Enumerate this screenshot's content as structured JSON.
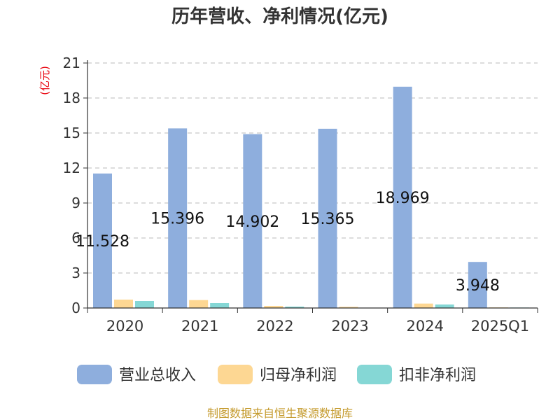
{
  "title": "历年营收、净利情况(亿元)",
  "source": "制图数据来自恒生聚源数据库",
  "chart_data": {
    "type": "bar",
    "title": "历年营收、净利情况(亿元)",
    "ylabel": "(亿元)",
    "xlabel": "",
    "ylim": [
      0,
      21
    ],
    "yticks": [
      0,
      3,
      6,
      9,
      12,
      15,
      18,
      21
    ],
    "grid": "horizontal-dashed",
    "legend_position": "bottom",
    "categories": [
      "2020",
      "2021",
      "2022",
      "2023",
      "2024",
      "2025Q1"
    ],
    "series": [
      {
        "name": "营业总收入",
        "color": "#8eaedd",
        "values": [
          11.528,
          15.396,
          14.902,
          15.365,
          18.969,
          3.948
        ],
        "labels": [
          "11.528",
          "15.396",
          "14.902",
          "15.365",
          "18.969",
          "3.948"
        ]
      },
      {
        "name": "归母净利润",
        "color": "#fdd793",
        "values": [
          0.72,
          0.68,
          0.18,
          0.1,
          0.38,
          0.05
        ]
      },
      {
        "name": "扣非净利润",
        "color": "#85d7d5",
        "values": [
          0.6,
          0.42,
          0.12,
          0.02,
          0.3,
          0.04
        ]
      }
    ]
  }
}
